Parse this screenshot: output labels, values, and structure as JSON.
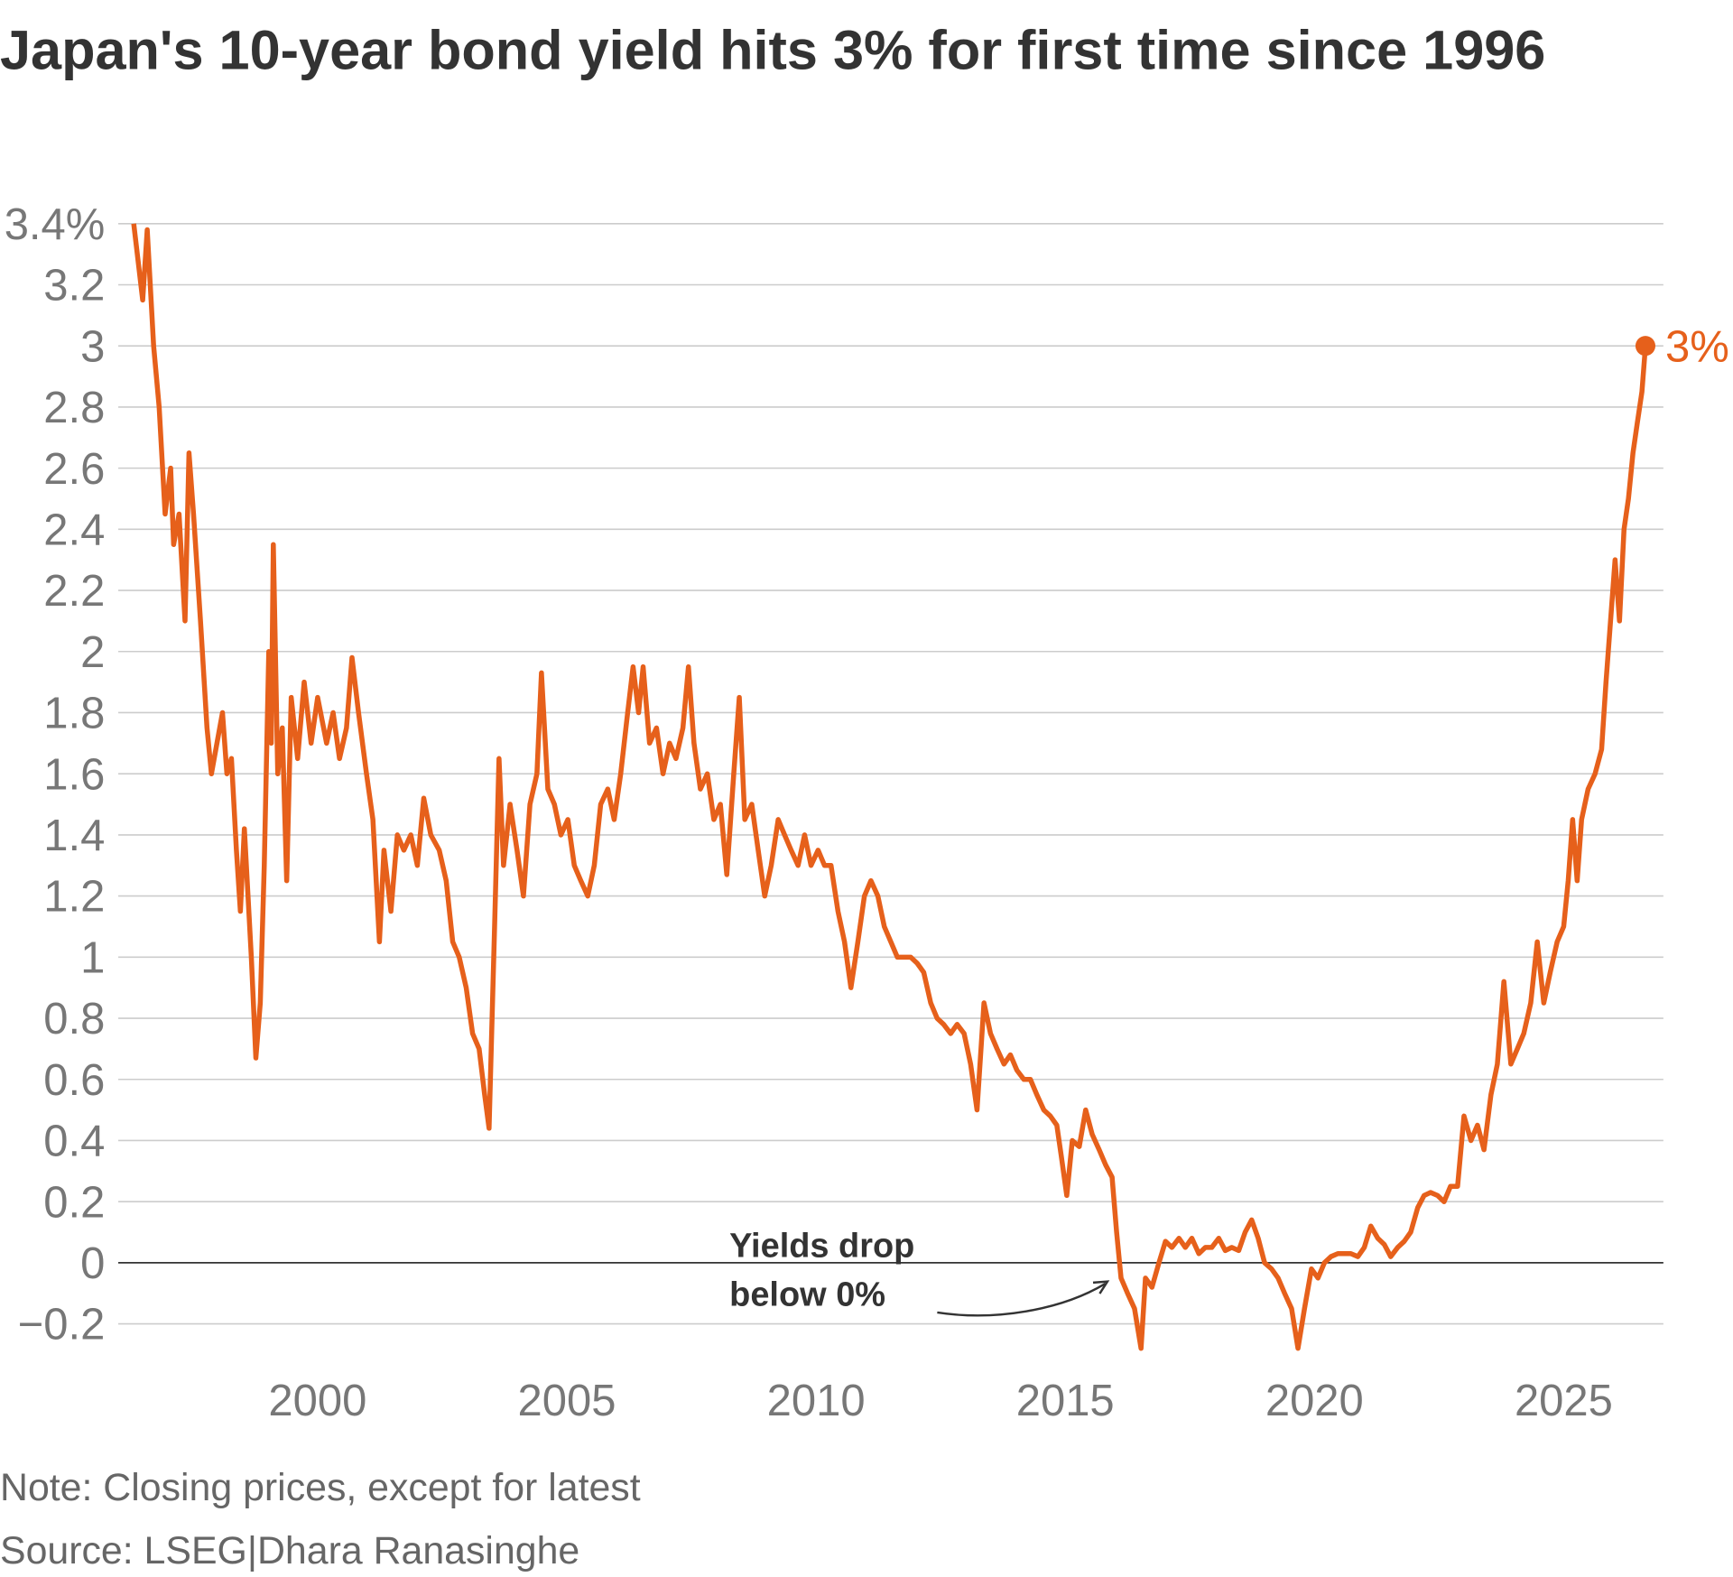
{
  "chart_data": {
    "type": "line",
    "title": "Japan's 10-year bond yield hits 3% for first time since 1996",
    "note": "Note: Closing prices, except for latest",
    "source": "Source: LSEG|Dhara Ranasinghe",
    "annotation_lines": [
      "Yields drop",
      "below 0%"
    ],
    "last_value_label": "3%",
    "color": "#e6601b",
    "grid": true,
    "xlim": [
      1996,
      2027
    ],
    "xticks": [
      2000,
      2005,
      2010,
      2015,
      2020,
      2025
    ],
    "ylim": [
      -0.3,
      3.4
    ],
    "yticks": [
      {
        "value": -0.2,
        "label": "−0.2"
      },
      0,
      0.2,
      0.4,
      0.6,
      0.8,
      1,
      1.2,
      1.4,
      1.6,
      1.8,
      2,
      2.2,
      2.4,
      2.6,
      2.8,
      3,
      3.2,
      {
        "value": 3.4,
        "label": "3.4%"
      }
    ],
    "x": [
      1996.31,
      1996.49,
      1996.58,
      1996.71,
      1996.82,
      1996.94,
      1997.05,
      1997.11,
      1997.22,
      1997.34,
      1997.42,
      1997.51,
      1997.65,
      1997.78,
      1997.87,
      1997.98,
      1998.09,
      1998.18,
      1998.27,
      1998.37,
      1998.45,
      1998.53,
      1998.67,
      1998.76,
      1998.85,
      1998.93,
      1999.02,
      1999.07,
      1999.11,
      1999.2,
      1999.29,
      1999.38,
      1999.47,
      1999.6,
      1999.73,
      1999.87,
      2000.0,
      2000.18,
      2000.31,
      2000.44,
      2000.58,
      2000.69,
      2000.82,
      2000.98,
      2001.11,
      2001.24,
      2001.33,
      2001.47,
      2001.6,
      2001.73,
      2001.87,
      2002.0,
      2002.13,
      2002.27,
      2002.44,
      2002.58,
      2002.71,
      2002.84,
      2002.98,
      2003.11,
      2003.24,
      2003.35,
      2003.44,
      2003.55,
      2003.64,
      2003.73,
      2003.86,
      2004.0,
      2004.13,
      2004.26,
      2004.4,
      2004.49,
      2004.62,
      2004.75,
      2004.88,
      2005.02,
      2005.15,
      2005.28,
      2005.42,
      2005.55,
      2005.68,
      2005.82,
      2005.95,
      2006.08,
      2006.22,
      2006.33,
      2006.44,
      2006.53,
      2006.66,
      2006.8,
      2006.93,
      2007.06,
      2007.19,
      2007.33,
      2007.44,
      2007.55,
      2007.68,
      2007.82,
      2007.95,
      2008.08,
      2008.21,
      2008.35,
      2008.46,
      2008.57,
      2008.71,
      2008.84,
      2008.97,
      2009.1,
      2009.24,
      2009.37,
      2009.5,
      2009.64,
      2009.77,
      2009.9,
      2010.04,
      2010.17,
      2010.3,
      2010.44,
      2010.57,
      2010.7,
      2010.84,
      2010.97,
      2011.1,
      2011.24,
      2011.37,
      2011.5,
      2011.63,
      2011.77,
      2011.9,
      2012.03,
      2012.16,
      2012.3,
      2012.43,
      2012.56,
      2012.7,
      2012.83,
      2012.97,
      2013.1,
      2013.23,
      2013.37,
      2013.5,
      2013.63,
      2013.77,
      2013.9,
      2014.03,
      2014.17,
      2014.3,
      2014.43,
      2014.57,
      2014.7,
      2014.83,
      2014.92,
      2015.03,
      2015.14,
      2015.28,
      2015.41,
      2015.54,
      2015.68,
      2015.81,
      2015.94,
      2016.03,
      2016.12,
      2016.25,
      2016.39,
      2016.52,
      2016.61,
      2016.74,
      2016.88,
      2017.01,
      2017.14,
      2017.28,
      2017.41,
      2017.54,
      2017.68,
      2017.81,
      2017.94,
      2018.08,
      2018.21,
      2018.34,
      2018.48,
      2018.61,
      2018.74,
      2018.87,
      2019.0,
      2019.14,
      2019.27,
      2019.4,
      2019.54,
      2019.67,
      2019.8,
      2019.94,
      2020.07,
      2020.2,
      2020.33,
      2020.47,
      2020.6,
      2020.73,
      2020.87,
      2021.0,
      2021.13,
      2021.27,
      2021.4,
      2021.53,
      2021.67,
      2021.8,
      2021.93,
      2022.07,
      2022.2,
      2022.33,
      2022.47,
      2022.6,
      2022.73,
      2022.87,
      2023.0,
      2023.14,
      2023.27,
      2023.4,
      2023.54,
      2023.67,
      2023.8,
      2023.94,
      2024.07,
      2024.2,
      2024.34,
      2024.47,
      2024.6,
      2024.73,
      2024.87,
      2025.0,
      2025.09,
      2025.18,
      2025.27,
      2025.36,
      2025.49,
      2025.63,
      2025.76,
      2025.85,
      2025.94,
      2026.03,
      2026.12,
      2026.21,
      2026.3,
      2026.39,
      2026.48,
      2026.57,
      2026.64
    ],
    "values": [
      3.4,
      3.15,
      3.38,
      3.0,
      2.8,
      2.45,
      2.6,
      2.35,
      2.45,
      2.1,
      2.65,
      2.45,
      2.1,
      1.75,
      1.6,
      1.7,
      1.8,
      1.6,
      1.65,
      1.35,
      1.15,
      1.42,
      1.0,
      0.67,
      0.85,
      1.3,
      2.0,
      1.7,
      2.35,
      1.6,
      1.75,
      1.25,
      1.85,
      1.65,
      1.9,
      1.7,
      1.85,
      1.7,
      1.8,
      1.65,
      1.75,
      1.98,
      1.8,
      1.6,
      1.45,
      1.05,
      1.35,
      1.15,
      1.4,
      1.35,
      1.4,
      1.3,
      1.52,
      1.4,
      1.35,
      1.25,
      1.05,
      1.0,
      0.9,
      0.75,
      0.7,
      0.55,
      0.44,
      1.1,
      1.65,
      1.3,
      1.5,
      1.35,
      1.2,
      1.5,
      1.6,
      1.93,
      1.55,
      1.5,
      1.4,
      1.45,
      1.3,
      1.25,
      1.2,
      1.3,
      1.5,
      1.55,
      1.45,
      1.6,
      1.8,
      1.95,
      1.8,
      1.95,
      1.7,
      1.75,
      1.6,
      1.7,
      1.65,
      1.75,
      1.95,
      1.7,
      1.55,
      1.6,
      1.45,
      1.5,
      1.27,
      1.6,
      1.85,
      1.45,
      1.5,
      1.35,
      1.2,
      1.3,
      1.45,
      1.4,
      1.35,
      1.3,
      1.4,
      1.3,
      1.35,
      1.3,
      1.3,
      1.15,
      1.05,
      0.9,
      1.05,
      1.2,
      1.25,
      1.2,
      1.1,
      1.05,
      1.0,
      1.0,
      1.0,
      0.98,
      0.95,
      0.85,
      0.8,
      0.78,
      0.75,
      0.78,
      0.75,
      0.65,
      0.5,
      0.85,
      0.75,
      0.7,
      0.65,
      0.68,
      0.63,
      0.6,
      0.6,
      0.55,
      0.5,
      0.48,
      0.45,
      0.35,
      0.22,
      0.4,
      0.38,
      0.5,
      0.42,
      0.37,
      0.32,
      0.28,
      0.1,
      -0.05,
      -0.1,
      -0.15,
      -0.28,
      -0.05,
      -0.08,
      0.0,
      0.07,
      0.05,
      0.08,
      0.05,
      0.08,
      0.03,
      0.05,
      0.05,
      0.08,
      0.04,
      0.05,
      0.04,
      0.1,
      0.14,
      0.08,
      0.0,
      -0.02,
      -0.05,
      -0.1,
      -0.15,
      -0.28,
      -0.15,
      -0.02,
      -0.05,
      0.0,
      0.02,
      0.03,
      0.03,
      0.03,
      0.02,
      0.05,
      0.12,
      0.08,
      0.06,
      0.02,
      0.05,
      0.07,
      0.1,
      0.18,
      0.22,
      0.23,
      0.22,
      0.2,
      0.25,
      0.25,
      0.48,
      0.4,
      0.45,
      0.37,
      0.55,
      0.65,
      0.92,
      0.65,
      0.7,
      0.75,
      0.85,
      1.05,
      0.85,
      0.95,
      1.05,
      1.1,
      1.25,
      1.45,
      1.25,
      1.45,
      1.55,
      1.6,
      1.68,
      1.9,
      2.1,
      2.3,
      2.1,
      2.4,
      2.5,
      2.65,
      2.75,
      2.85,
      3.0
    ]
  }
}
